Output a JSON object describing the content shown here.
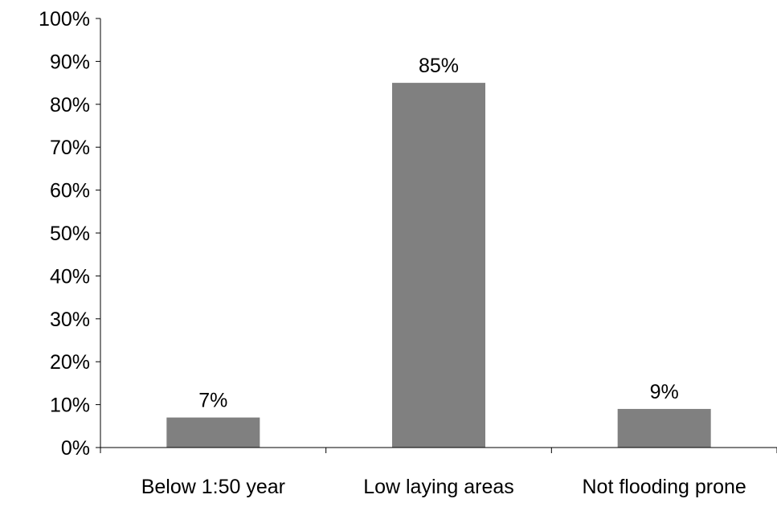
{
  "chart_data": {
    "type": "bar",
    "title": "",
    "xlabel": "",
    "ylabel": "",
    "categories": [
      "Below 1:50 year",
      "Low laying areas",
      "Not flooding prone"
    ],
    "values": [
      7,
      85,
      9
    ],
    "data_labels": [
      "7%",
      "85%",
      "9%"
    ],
    "ylim": [
      0,
      100
    ],
    "y_ticks": [
      0,
      10,
      20,
      30,
      40,
      50,
      60,
      70,
      80,
      90,
      100
    ],
    "y_tick_labels": [
      "0%",
      "10%",
      "20%",
      "30%",
      "40%",
      "50%",
      "60%",
      "70%",
      "80%",
      "90%",
      "100%"
    ],
    "grid": false,
    "legend": "none",
    "bar_color": "#808080",
    "axis_color": "#000000"
  }
}
